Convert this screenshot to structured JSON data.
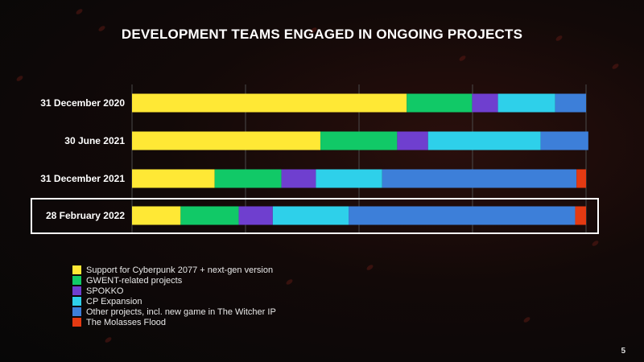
{
  "page": {
    "number": "5"
  },
  "colors": {
    "support_cyberpunk": "#ffe835",
    "gwent": "#11c967",
    "spokko": "#6f3fcf",
    "cp_expansion": "#2ed0ea",
    "other_projects": "#3d7fd9",
    "molasses_flood": "#e43a12"
  },
  "chart_data": {
    "type": "bar",
    "orientation": "horizontal",
    "stacked": true,
    "normalized": true,
    "title": "DEVELOPMENT TEAMS ENGAGED IN ONGOING PROJECTS",
    "xlabel": "",
    "ylabel": "",
    "xlim": [
      0,
      100
    ],
    "grid": true,
    "categories": [
      "31 December 2020",
      "30 June 2021",
      "31 December 2021",
      "28 February 2022"
    ],
    "highlighted_category": "28 February 2022",
    "legend_position": "bottom-left",
    "series": [
      {
        "name": "Support for Cyberpunk 2077 + next-gen version",
        "color": "#ffe835",
        "values": [
          60.5,
          41.5,
          18.2,
          10.7
        ]
      },
      {
        "name": "GWENT-related projects",
        "color": "#11c967",
        "values": [
          14.4,
          16.9,
          14.7,
          12.8
        ]
      },
      {
        "name": "SPOKKO",
        "color": "#6f3fcf",
        "values": [
          5.7,
          6.8,
          7.6,
          7.5
        ]
      },
      {
        "name": "CP Expansion",
        "color": "#2ed0ea",
        "values": [
          12.6,
          24.8,
          14.6,
          16.7
        ]
      },
      {
        "name": "Other projects, incl. new game in The Witcher IP",
        "color": "#3d7fd9",
        "values": [
          6.8,
          10.5,
          42.8,
          49.9
        ]
      },
      {
        "name": "The Molasses Flood",
        "color": "#e43a12",
        "values": [
          0,
          0,
          2.1,
          2.4
        ]
      }
    ]
  }
}
